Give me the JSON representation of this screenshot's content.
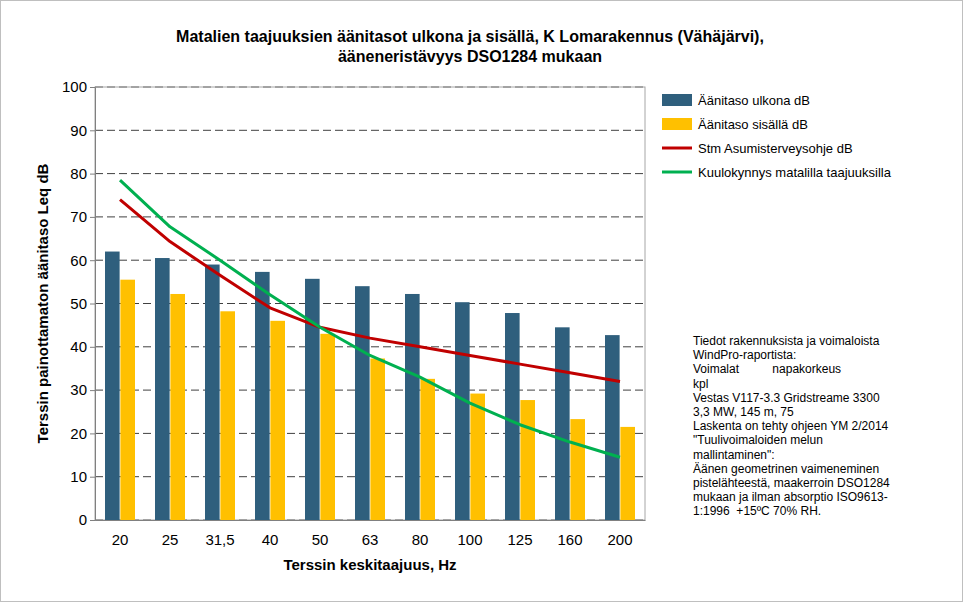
{
  "chart_data": {
    "type": "bar",
    "title": "Matalien taajuuksien äänitasot ulkona ja sisällä, K Lomarakennus (Vähäjärvi),\nääneneristävyys DSO1284 mukaan",
    "x_label": "Terssin keskitaajuus, Hz",
    "y_label": "Terssin painottamaton äänitaso Leq dB",
    "categories": [
      "20",
      "25",
      "31,5",
      "40",
      "50",
      "63",
      "80",
      "100",
      "125",
      "160",
      "200"
    ],
    "series": [
      {
        "name": "Äänitaso ulkona dB",
        "type": "bar",
        "color": "#2f5f7d",
        "values": [
          62,
          60.5,
          59,
          57.3,
          55.7,
          54,
          52.2,
          50.3,
          47.8,
          44.5,
          42.7
        ]
      },
      {
        "name": "Äänitaso sisällä dB",
        "type": "bar",
        "color": "#ffc000",
        "values": [
          55.5,
          52.2,
          48.2,
          46,
          43,
          37.3,
          32.6,
          29.2,
          27.7,
          23.3,
          21.5
        ]
      },
      {
        "name": "Stm Asumisterveysohje dB",
        "type": "line",
        "color": "#c00000",
        "values": [
          74,
          64.3,
          56.5,
          49,
          44.5,
          42,
          40,
          38,
          36,
          34,
          32
        ]
      },
      {
        "name": "Kuulokynnys matalilla taajuuksilla",
        "type": "line",
        "color": "#00b050",
        "values": [
          78.5,
          67.7,
          60,
          52,
          44.5,
          38,
          33,
          27,
          22,
          18,
          14.5
        ]
      }
    ],
    "ylim": [
      0,
      100
    ],
    "yticks": [
      0,
      10,
      20,
      30,
      40,
      50,
      60,
      70,
      80,
      90,
      100
    ],
    "grid": true,
    "legend": "top-right",
    "annotations": [
      "Tiedot rakennuksista ja voimaloista",
      "WindPro-raportista:",
      "Voimalat          napakorkeus",
      "kpl",
      "Vestas V117-3.3 Gridstreame 3300",
      "3,3 MW, 145 m, 75",
      "Laskenta on tehty ohjeen YM 2/2014",
      "\"Tuulivoimaloiden melun",
      "mallintaminen\":",
      "Äänen geometrinen vaimeneminen",
      "pistelähteestä, maakerroin DSO1284",
      "mukaan ja ilman absorptio ISO9613-",
      "1:1996  +15ºC 70% RH."
    ]
  }
}
